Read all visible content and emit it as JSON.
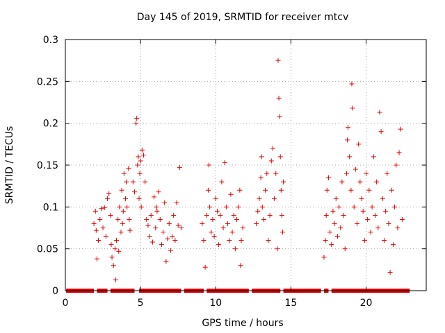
{
  "chart_data": {
    "type": "scatter",
    "title": "Day 145 of 2019, SRMTID for receiver mtcv",
    "xlabel": "GPS time / hours",
    "ylabel": "SRMTID / TECUs",
    "xlim": [
      0,
      24
    ],
    "ylim": [
      0,
      0.3
    ],
    "x_ticks": [
      0,
      5,
      10,
      15,
      20
    ],
    "x_tick_labels": [
      "0",
      "5",
      "10",
      "15",
      "20"
    ],
    "y_ticks": [
      0,
      0.05,
      0.1,
      0.15,
      0.2,
      0.25,
      0.3
    ],
    "y_tick_labels": [
      "0",
      "0.05",
      "0.1",
      "0.15",
      "0.2",
      "0.25",
      "0.3"
    ],
    "grid": true,
    "marker": "plus",
    "color": "#e00000",
    "series": [
      {
        "name": "SRMTID",
        "points": [
          [
            1.9,
            0.08
          ],
          [
            2.0,
            0.095
          ],
          [
            2.05,
            0.072
          ],
          [
            2.1,
            0.038
          ],
          [
            2.2,
            0.06
          ],
          [
            2.3,
            0.085
          ],
          [
            2.4,
            0.098
          ],
          [
            2.5,
            0.075
          ],
          [
            2.6,
            0.099
          ],
          [
            2.7,
            0.065
          ],
          [
            2.8,
            0.11
          ],
          [
            2.9,
            0.116
          ],
          [
            3.0,
            0.09
          ],
          [
            3.05,
            0.055
          ],
          [
            3.1,
            0.04
          ],
          [
            3.2,
            0.03
          ],
          [
            3.3,
            0.05
          ],
          [
            3.35,
            0.013
          ],
          [
            3.4,
            0.06
          ],
          [
            3.5,
            0.085
          ],
          [
            3.55,
            0.047
          ],
          [
            3.6,
            0.1
          ],
          [
            3.7,
            0.07
          ],
          [
            3.75,
            0.12
          ],
          [
            3.8,
            0.08
          ],
          [
            3.85,
            0.095
          ],
          [
            3.9,
            0.14
          ],
          [
            4.0,
            0.11
          ],
          [
            4.05,
            0.13
          ],
          [
            4.1,
            0.1
          ],
          [
            4.2,
            0.146
          ],
          [
            4.25,
            0.085
          ],
          [
            4.3,
            0.072
          ],
          [
            4.5,
            0.13
          ],
          [
            4.6,
            0.118
          ],
          [
            4.7,
            0.2
          ],
          [
            4.75,
            0.206
          ],
          [
            4.8,
            0.15
          ],
          [
            4.85,
            0.16
          ],
          [
            4.9,
            0.11
          ],
          [
            4.95,
            0.14
          ],
          [
            5.0,
            0.155
          ],
          [
            5.05,
            0.1
          ],
          [
            5.1,
            0.168
          ],
          [
            5.2,
            0.162
          ],
          [
            5.3,
            0.13
          ],
          [
            5.4,
            0.085
          ],
          [
            5.5,
            0.078
          ],
          [
            5.6,
            0.065
          ],
          [
            5.7,
            0.09
          ],
          [
            5.8,
            0.058
          ],
          [
            5.9,
            0.112
          ],
          [
            6.0,
            0.075
          ],
          [
            6.05,
            0.1
          ],
          [
            6.1,
            0.095
          ],
          [
            6.2,
            0.118
          ],
          [
            6.3,
            0.085
          ],
          [
            6.4,
            0.055
          ],
          [
            6.5,
            0.07
          ],
          [
            6.6,
            0.105
          ],
          [
            6.7,
            0.035
          ],
          [
            6.8,
            0.062
          ],
          [
            6.9,
            0.08
          ],
          [
            7.0,
            0.048
          ],
          [
            7.1,
            0.065
          ],
          [
            7.2,
            0.09
          ],
          [
            7.3,
            0.06
          ],
          [
            7.4,
            0.105
          ],
          [
            7.5,
            0.078
          ],
          [
            7.6,
            0.147
          ],
          [
            7.7,
            0.075
          ],
          [
            9.1,
            0.08
          ],
          [
            9.2,
            0.06
          ],
          [
            9.3,
            0.028
          ],
          [
            9.4,
            0.09
          ],
          [
            9.5,
            0.12
          ],
          [
            9.55,
            0.15
          ],
          [
            9.6,
            0.1
          ],
          [
            9.7,
            0.07
          ],
          [
            9.8,
            0.085
          ],
          [
            9.9,
            0.065
          ],
          [
            10.0,
            0.11
          ],
          [
            10.1,
            0.095
          ],
          [
            10.2,
            0.055
          ],
          [
            10.3,
            0.09
          ],
          [
            10.4,
            0.13
          ],
          [
            10.5,
            0.075
          ],
          [
            10.6,
            0.153
          ],
          [
            10.7,
            0.1
          ],
          [
            10.8,
            0.08
          ],
          [
            10.9,
            0.06
          ],
          [
            11.0,
            0.115
          ],
          [
            11.1,
            0.07
          ],
          [
            11.2,
            0.09
          ],
          [
            11.3,
            0.05
          ],
          [
            11.4,
            0.085
          ],
          [
            11.5,
            0.1
          ],
          [
            11.6,
            0.12
          ],
          [
            11.65,
            0.03
          ],
          [
            11.7,
            0.06
          ],
          [
            11.8,
            0.075
          ],
          [
            12.7,
            0.08
          ],
          [
            12.8,
            0.095
          ],
          [
            12.9,
            0.11
          ],
          [
            13.0,
            0.135
          ],
          [
            13.05,
            0.16
          ],
          [
            13.1,
            0.1
          ],
          [
            13.2,
            0.085
          ],
          [
            13.3,
            0.12
          ],
          [
            13.4,
            0.14
          ],
          [
            13.5,
            0.06
          ],
          [
            13.6,
            0.09
          ],
          [
            13.7,
            0.155
          ],
          [
            13.8,
            0.17
          ],
          [
            13.9,
            0.11
          ],
          [
            14.0,
            0.14
          ],
          [
            14.1,
            0.05
          ],
          [
            14.15,
            0.275
          ],
          [
            14.2,
            0.23
          ],
          [
            14.25,
            0.208
          ],
          [
            14.3,
            0.16
          ],
          [
            14.35,
            0.12
          ],
          [
            14.4,
            0.09
          ],
          [
            14.45,
            0.07
          ],
          [
            14.5,
            0.13
          ],
          [
            17.2,
            0.04
          ],
          [
            17.3,
            0.06
          ],
          [
            17.35,
            0.09
          ],
          [
            17.4,
            0.12
          ],
          [
            17.5,
            0.135
          ],
          [
            17.6,
            0.07
          ],
          [
            17.7,
            0.055
          ],
          [
            17.8,
            0.095
          ],
          [
            17.9,
            0.08
          ],
          [
            18.0,
            0.11
          ],
          [
            18.1,
            0.065
          ],
          [
            18.2,
            0.1
          ],
          [
            18.3,
            0.075
          ],
          [
            18.4,
            0.13
          ],
          [
            18.5,
            0.09
          ],
          [
            18.6,
            0.05
          ],
          [
            18.7,
            0.14
          ],
          [
            18.75,
            0.18
          ],
          [
            18.8,
            0.195
          ],
          [
            18.9,
            0.16
          ],
          [
            19.0,
            0.12
          ],
          [
            19.05,
            0.247
          ],
          [
            19.1,
            0.218
          ],
          [
            19.2,
            0.1
          ],
          [
            19.3,
            0.145
          ],
          [
            19.4,
            0.08
          ],
          [
            19.5,
            0.175
          ],
          [
            19.6,
            0.13
          ],
          [
            19.7,
            0.11
          ],
          [
            19.8,
            0.095
          ],
          [
            19.9,
            0.06
          ],
          [
            20.0,
            0.14
          ],
          [
            20.1,
            0.085
          ],
          [
            20.2,
            0.12
          ],
          [
            20.3,
            0.07
          ],
          [
            20.4,
            0.1
          ],
          [
            20.5,
            0.16
          ],
          [
            20.6,
            0.09
          ],
          [
            20.7,
            0.13
          ],
          [
            20.8,
            0.075
          ],
          [
            20.9,
            0.213
          ],
          [
            21.0,
            0.19
          ],
          [
            21.1,
            0.11
          ],
          [
            21.2,
            0.06
          ],
          [
            21.3,
            0.095
          ],
          [
            21.4,
            0.14
          ],
          [
            21.5,
            0.08
          ],
          [
            21.6,
            0.022
          ],
          [
            21.7,
            0.12
          ],
          [
            21.8,
            0.055
          ],
          [
            21.9,
            0.1
          ],
          [
            22.0,
            0.15
          ],
          [
            22.1,
            0.075
          ],
          [
            22.2,
            0.165
          ],
          [
            22.3,
            0.193
          ],
          [
            22.4,
            0.085
          ]
        ],
        "zero_value_band": [
          [
            0.05,
            1.9
          ],
          [
            2.1,
            2.8
          ],
          [
            3.0,
            4.6
          ],
          [
            4.9,
            7.7
          ],
          [
            7.9,
            9.2
          ],
          [
            9.4,
            12.2
          ],
          [
            12.4,
            14.3
          ],
          [
            14.5,
            17.0
          ],
          [
            17.2,
            17.5
          ],
          [
            17.7,
            22.9
          ]
        ]
      }
    ]
  }
}
